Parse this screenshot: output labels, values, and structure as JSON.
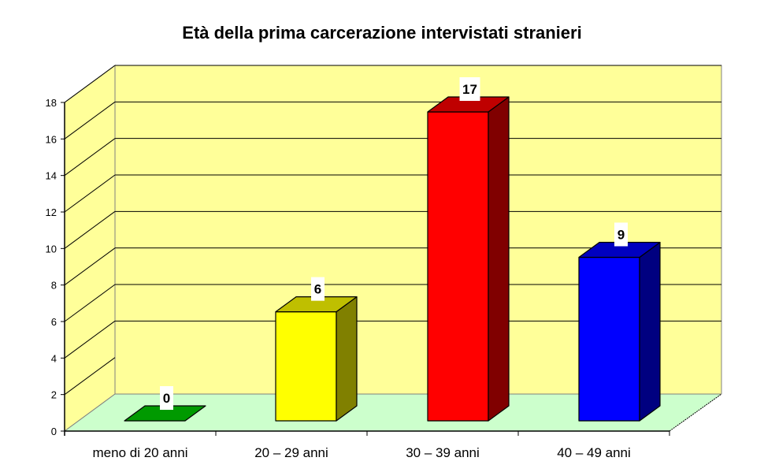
{
  "chart_data": {
    "type": "bar",
    "title": "Età della prima carcerazione intervistati stranieri",
    "xlabel": "",
    "ylabel": "",
    "categories": [
      "meno di 20 anni",
      "20 – 29 anni",
      "30 – 39 anni",
      "40 – 49 anni"
    ],
    "values": [
      0,
      6,
      17,
      9
    ],
    "data_labels": [
      "0",
      "6",
      "17",
      "9"
    ],
    "colors": [
      "#00c000",
      "#ffff00",
      "#ff0000",
      "#0000ff"
    ],
    "ylim": [
      0,
      18
    ],
    "yticks": [
      "0",
      "2",
      "4",
      "6",
      "8",
      "10",
      "12",
      "14",
      "16",
      "18"
    ],
    "grid": true,
    "legend": "none",
    "style": "3d-column",
    "wall_color": "#ffff99",
    "floor_color": "#ccffcc"
  }
}
